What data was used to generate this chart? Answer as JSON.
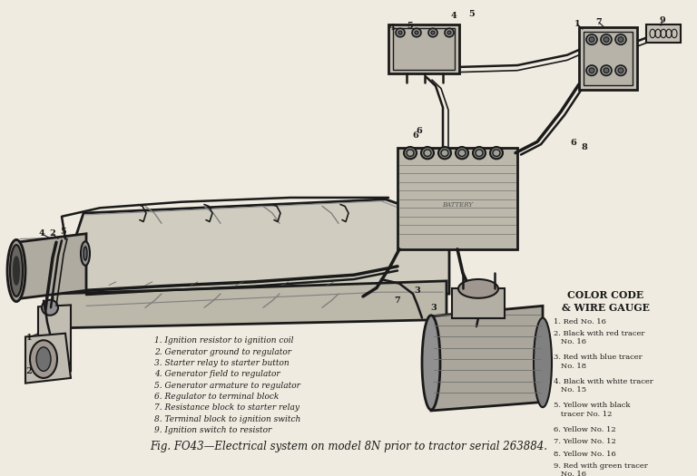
{
  "title": "Fig. FO43—Electrical system on model 8N prior to tractor serial 263884.",
  "background_color": "#f0ebe0",
  "fg_color": "#1a1a1a",
  "parts_list": [
    "1. Ignition resistor to ignition coil",
    "2. Generator ground to regulator",
    "3. Starter relay to starter button",
    "4. Generator field to regulator",
    "5. Generator armature to regulator",
    "6. Regulator to terminal block",
    "7. Resistance block to starter relay",
    "8. Terminal block to ignition switch",
    "9. Ignition switch to resistor"
  ],
  "color_code_title": "COLOR CODE\n& WIRE GAUGE",
  "color_codes": [
    "1. Red No. 16",
    "2. Black with red tracer\n   No. 16",
    "3. Red with blue tracer\n   No. 18",
    "4. Black with white tracer\n   No. 15",
    "5. Yellow with black\n   tracer No. 12",
    "6. Yellow No. 12",
    "7. Yellow No. 12",
    "8. Yellow No. 16",
    "9. Red with green tracer\n   No. 16"
  ]
}
